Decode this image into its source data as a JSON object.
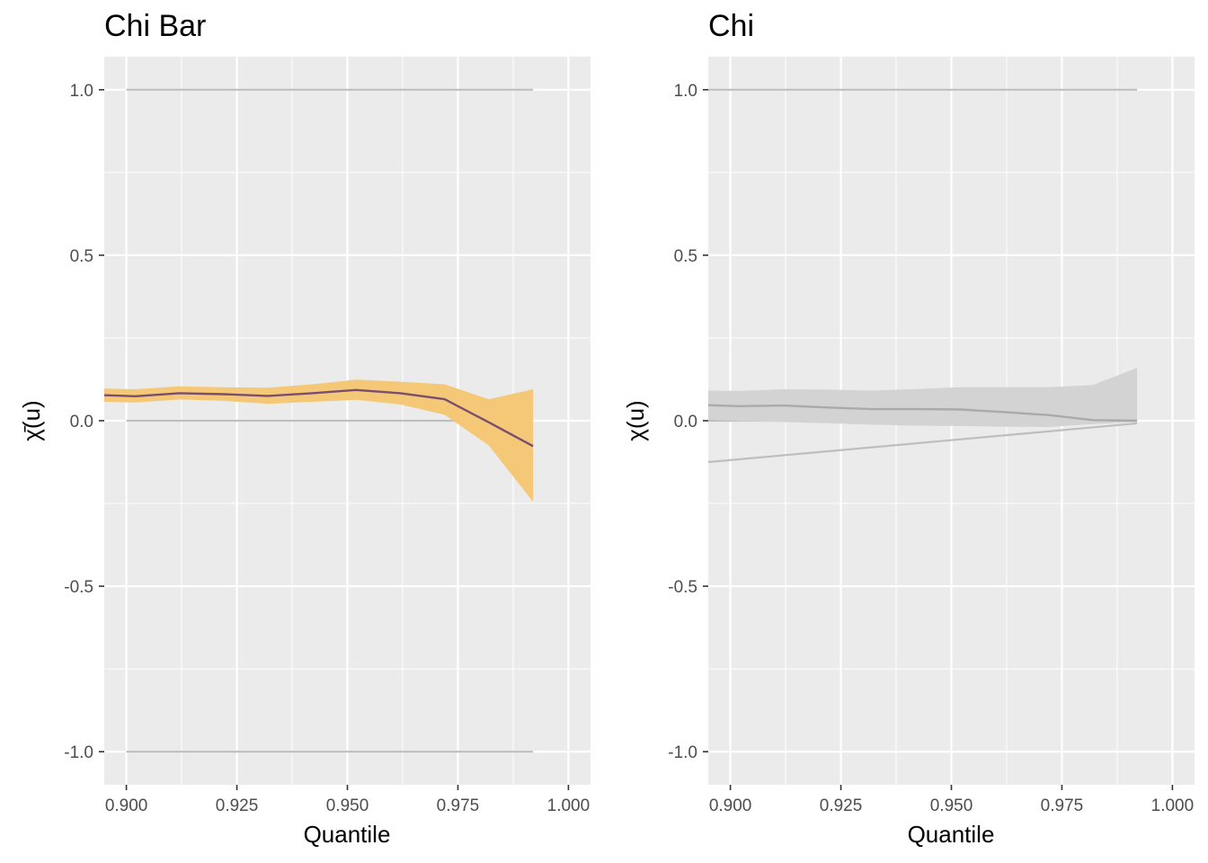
{
  "colors": {
    "panel_bg": "#ebebeb",
    "grid": "#ffffff",
    "reference_line": "#bebebe",
    "chibar_line": "#7b4d6f",
    "chibar_band": "#f5c878",
    "chi_line": "#aaaaaa",
    "chi_band": "#d3d3d3"
  },
  "chart_data": [
    {
      "type": "line",
      "title": "Chi Bar",
      "xlabel": "Quantile",
      "ylabel": "χ̄(u)",
      "xlim": [
        0.895,
        1.005
      ],
      "ylim": [
        -1.1,
        1.1
      ],
      "x_ticks": [
        0.9,
        0.925,
        0.95,
        0.975,
        1.0
      ],
      "x_tick_labels": [
        "0.900",
        "0.925",
        "0.950",
        "0.975",
        "1.000"
      ],
      "y_ticks": [
        -1.0,
        -0.5,
        0.0,
        0.5,
        1.0
      ],
      "y_tick_labels": [
        "-1.0",
        "-0.5",
        "0.0",
        "0.5",
        "1.0"
      ],
      "grid": true,
      "reference_lines": [
        {
          "x": [
            0.9,
            0.992
          ],
          "y": [
            1.0,
            1.0
          ]
        },
        {
          "x": [
            0.9,
            0.992
          ],
          "y": [
            0.0,
            0.0
          ]
        },
        {
          "x": [
            0.9,
            0.992
          ],
          "y": [
            -1.0,
            -1.0
          ]
        }
      ],
      "series": [
        {
          "x": [
            0.895,
            0.902,
            0.912,
            0.922,
            0.932,
            0.942,
            0.952,
            0.962,
            0.972,
            0.982,
            0.992
          ],
          "values": [
            0.077,
            0.074,
            0.083,
            0.08,
            0.075,
            0.083,
            0.093,
            0.083,
            0.065,
            -0.005,
            -0.077
          ],
          "lower": [
            0.057,
            0.055,
            0.064,
            0.06,
            0.051,
            0.057,
            0.063,
            0.049,
            0.018,
            -0.075,
            -0.245
          ],
          "upper": [
            0.097,
            0.095,
            0.104,
            0.101,
            0.1,
            0.11,
            0.124,
            0.118,
            0.11,
            0.065,
            0.095
          ]
        }
      ]
    },
    {
      "type": "line",
      "title": "Chi",
      "xlabel": "Quantile",
      "ylabel": "χ(u)",
      "xlim": [
        0.895,
        1.005
      ],
      "ylim": [
        -1.1,
        1.1
      ],
      "x_ticks": [
        0.9,
        0.925,
        0.95,
        0.975,
        1.0
      ],
      "x_tick_labels": [
        "0.900",
        "0.925",
        "0.950",
        "0.975",
        "1.000"
      ],
      "y_ticks": [
        -1.0,
        -0.5,
        0.0,
        0.5,
        1.0
      ],
      "y_tick_labels": [
        "-1.0",
        "-0.5",
        "0.0",
        "0.5",
        "1.0"
      ],
      "grid": true,
      "reference_lines": [
        {
          "x": [
            0.895,
            0.992
          ],
          "y": [
            1.0,
            1.0
          ]
        },
        {
          "x": [
            0.895,
            0.992
          ],
          "y": [
            0.0,
            0.0
          ]
        },
        {
          "x": [
            0.895,
            0.992
          ],
          "y": [
            -0.125,
            -0.008
          ]
        }
      ],
      "series": [
        {
          "x": [
            0.895,
            0.902,
            0.912,
            0.922,
            0.932,
            0.942,
            0.952,
            0.962,
            0.972,
            0.982,
            0.992
          ],
          "values": [
            0.047,
            0.044,
            0.046,
            0.04,
            0.035,
            0.035,
            0.034,
            0.026,
            0.017,
            0.002,
            0.0
          ],
          "lower": [
            0.003,
            -0.001,
            -0.004,
            -0.008,
            -0.012,
            -0.015,
            -0.016,
            -0.018,
            -0.019,
            -0.01,
            -0.004
          ],
          "upper": [
            0.091,
            0.09,
            0.095,
            0.094,
            0.091,
            0.096,
            0.101,
            0.101,
            0.101,
            0.108,
            0.16
          ]
        }
      ]
    }
  ]
}
